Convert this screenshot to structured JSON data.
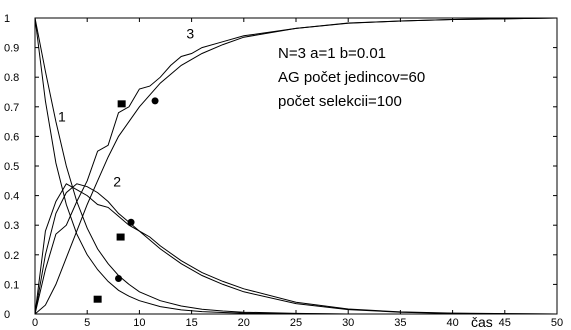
{
  "chart_data": {
    "type": "line",
    "xlim": [
      0,
      50
    ],
    "ylim": [
      0,
      1
    ],
    "xticks": [
      "0",
      "5",
      "10",
      "15",
      "20",
      "25",
      "30",
      "35",
      "40",
      "45",
      "50"
    ],
    "yticks": [
      "0",
      "0.1",
      "0.2",
      "0.3",
      "0.4",
      "0.5",
      "0.6",
      "0.7",
      "0.8",
      "0.9",
      "1"
    ],
    "xlabel": "čas",
    "ylabel": "",
    "grid": false,
    "annotations": [
      "N=3 a=1 b=0.01",
      "AG počet jedincov=60",
      "počet selekcii=100"
    ],
    "curve_labels": [
      {
        "text": "1",
        "x": 2.2,
        "y": 0.65
      },
      {
        "text": "2",
        "x": 7.5,
        "y": 0.43
      },
      {
        "text": "3",
        "x": 14.5,
        "y": 0.93
      }
    ],
    "series": [
      {
        "values_x": [
          0,
          1,
          2,
          3,
          4,
          5,
          6,
          7,
          8,
          9,
          10,
          12,
          14,
          16,
          18,
          20,
          25,
          30,
          35,
          40,
          50
        ],
        "values_y": [
          1.0,
          0.72,
          0.51,
          0.37,
          0.27,
          0.2,
          0.15,
          0.11,
          0.08,
          0.06,
          0.045,
          0.025,
          0.014,
          0.008,
          0.005,
          0.003,
          0.001,
          0.0,
          0.0,
          0.0,
          0.0
        ]
      },
      {
        "values_x": [
          0,
          1,
          2,
          3,
          4,
          5,
          6,
          7,
          8,
          9,
          10,
          12,
          14,
          16,
          18,
          20,
          25,
          30,
          35,
          40,
          50
        ],
        "values_y": [
          1.0,
          0.82,
          0.65,
          0.5,
          0.38,
          0.29,
          0.22,
          0.17,
          0.13,
          0.1,
          0.075,
          0.045,
          0.027,
          0.016,
          0.01,
          0.006,
          0.002,
          0.0,
          0.0,
          0.0,
          0.0
        ]
      },
      {
        "values_x": [
          0,
          1,
          2,
          3,
          4,
          5,
          6,
          7,
          8,
          9,
          10,
          12,
          14,
          16,
          18,
          20,
          25,
          30,
          35,
          40,
          50
        ],
        "values_y": [
          0.0,
          0.2,
          0.34,
          0.41,
          0.44,
          0.43,
          0.41,
          0.38,
          0.34,
          0.31,
          0.28,
          0.22,
          0.17,
          0.13,
          0.1,
          0.075,
          0.035,
          0.015,
          0.006,
          0.002,
          0.0
        ]
      },
      {
        "values_x": [
          0,
          1,
          2,
          3,
          4,
          5,
          6,
          7,
          8,
          9,
          10,
          11,
          12,
          14,
          16,
          18,
          20,
          25,
          30,
          35,
          40,
          50
        ],
        "values_y": [
          0.0,
          0.28,
          0.38,
          0.44,
          0.42,
          0.4,
          0.37,
          0.36,
          0.33,
          0.3,
          0.28,
          0.26,
          0.23,
          0.18,
          0.14,
          0.11,
          0.085,
          0.04,
          0.017,
          0.007,
          0.003,
          0.0
        ]
      },
      {
        "values_x": [
          0,
          1,
          2,
          3,
          4,
          5,
          6,
          7,
          8,
          9,
          10,
          12,
          14,
          16,
          18,
          20,
          25,
          30,
          35,
          40,
          50
        ],
        "values_y": [
          0.0,
          0.03,
          0.1,
          0.19,
          0.28,
          0.37,
          0.45,
          0.53,
          0.6,
          0.65,
          0.7,
          0.78,
          0.84,
          0.88,
          0.91,
          0.935,
          0.965,
          0.982,
          0.99,
          0.995,
          1.0
        ]
      },
      {
        "values_x": [
          0,
          1,
          2,
          3,
          4,
          5,
          6,
          7,
          8,
          9,
          10,
          11,
          12,
          13,
          14,
          15,
          16,
          18,
          20,
          25,
          30,
          35,
          40,
          50
        ],
        "values_y": [
          0.0,
          0.15,
          0.27,
          0.3,
          0.38,
          0.45,
          0.55,
          0.57,
          0.68,
          0.7,
          0.76,
          0.77,
          0.8,
          0.84,
          0.87,
          0.88,
          0.9,
          0.92,
          0.94,
          0.965,
          0.983,
          0.99,
          0.995,
          1.0
        ]
      }
    ],
    "markers": [
      {
        "shape": "square",
        "x": 6.0,
        "y": 0.05
      },
      {
        "shape": "circle",
        "x": 8.0,
        "y": 0.12
      },
      {
        "shape": "square",
        "x": 8.2,
        "y": 0.26
      },
      {
        "shape": "circle",
        "x": 9.2,
        "y": 0.31
      },
      {
        "shape": "square",
        "x": 8.3,
        "y": 0.71
      },
      {
        "shape": "circle",
        "x": 11.5,
        "y": 0.72
      }
    ]
  }
}
